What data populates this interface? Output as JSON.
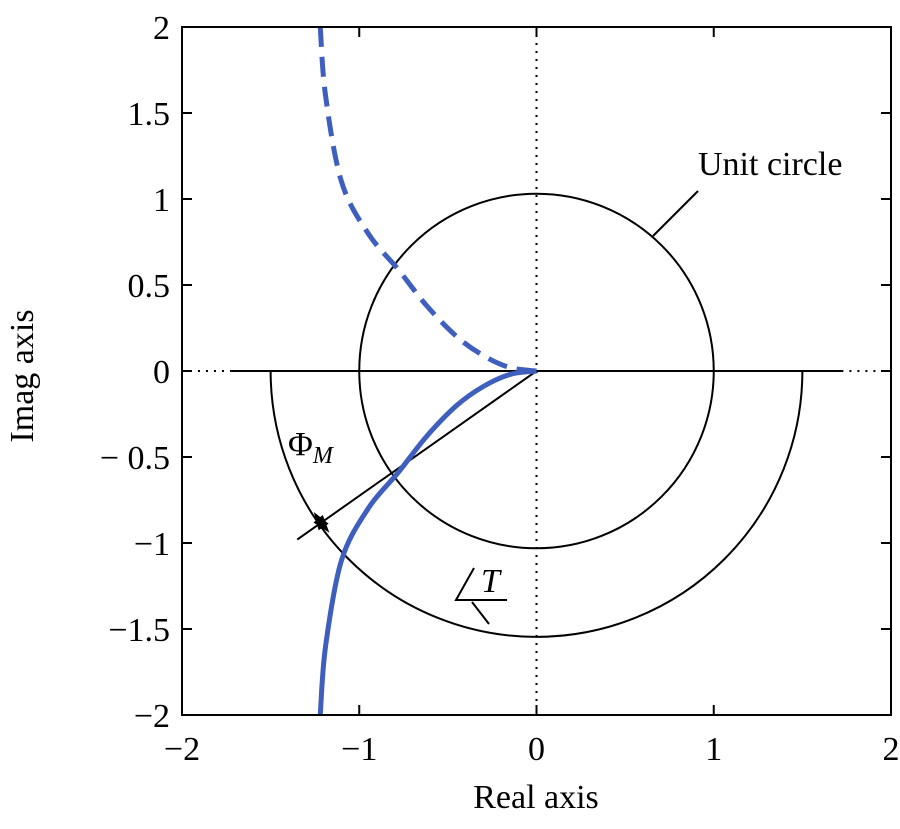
{
  "chart_data": {
    "type": "line",
    "xlabel": "Real axis",
    "ylabel": "Imag axis",
    "xlim": [
      -2,
      2
    ],
    "ylim": [
      -2,
      2
    ],
    "x_ticks": [
      -2,
      -1,
      0,
      1,
      2
    ],
    "y_ticks": [
      -2,
      -1.5,
      -1,
      -0.5,
      0,
      0.5,
      1,
      1.5,
      2
    ],
    "x_tick_labels": [
      "−2",
      "−1",
      "0",
      "1",
      "2"
    ],
    "y_tick_labels": [
      "−2",
      "−1.5",
      "−1",
      "− 0.5",
      "0",
      "0.5",
      "1",
      "1.5",
      "2"
    ],
    "grid": false,
    "reference_lines": {
      "real_axis": "dotted",
      "imag_axis": "dotted"
    },
    "unit_circle": {
      "center": [
        0,
        0
      ],
      "radius": 1
    },
    "phase_arc": {
      "center": [
        0,
        0
      ],
      "radius": 1.5,
      "from_deg": 0,
      "to_deg": -180
    },
    "crossover_point": [
      -0.78,
      -0.59
    ],
    "phase_margin_line": {
      "from": [
        0,
        0
      ],
      "to": [
        -1.35,
        -0.98
      ]
    },
    "series": [
      {
        "style": "solid",
        "color": "#3f5fbf",
        "points": [
          [
            -1.22,
            -2.0
          ],
          [
            -1.19,
            -1.6
          ],
          [
            -1.1,
            -1.1
          ],
          [
            -0.95,
            -0.8
          ],
          [
            -0.78,
            -0.59
          ],
          [
            -0.62,
            -0.38
          ],
          [
            -0.45,
            -0.2
          ],
          [
            -0.3,
            -0.09
          ],
          [
            -0.15,
            -0.02
          ],
          [
            0,
            0
          ]
        ]
      },
      {
        "style": "dashed",
        "color": "#3f5fbf",
        "points": [
          [
            0,
            0
          ],
          [
            -0.15,
            0.02
          ],
          [
            -0.3,
            0.09
          ],
          [
            -0.45,
            0.2
          ],
          [
            -0.62,
            0.38
          ],
          [
            -0.78,
            0.59
          ],
          [
            -0.95,
            0.8
          ],
          [
            -1.1,
            1.1
          ],
          [
            -1.19,
            1.6
          ],
          [
            -1.22,
            2.0
          ]
        ]
      }
    ],
    "annotations": [
      {
        "text": "Unit circle"
      },
      {
        "text": "Φ",
        "subscript": "M"
      },
      {
        "text": "T"
      }
    ]
  }
}
